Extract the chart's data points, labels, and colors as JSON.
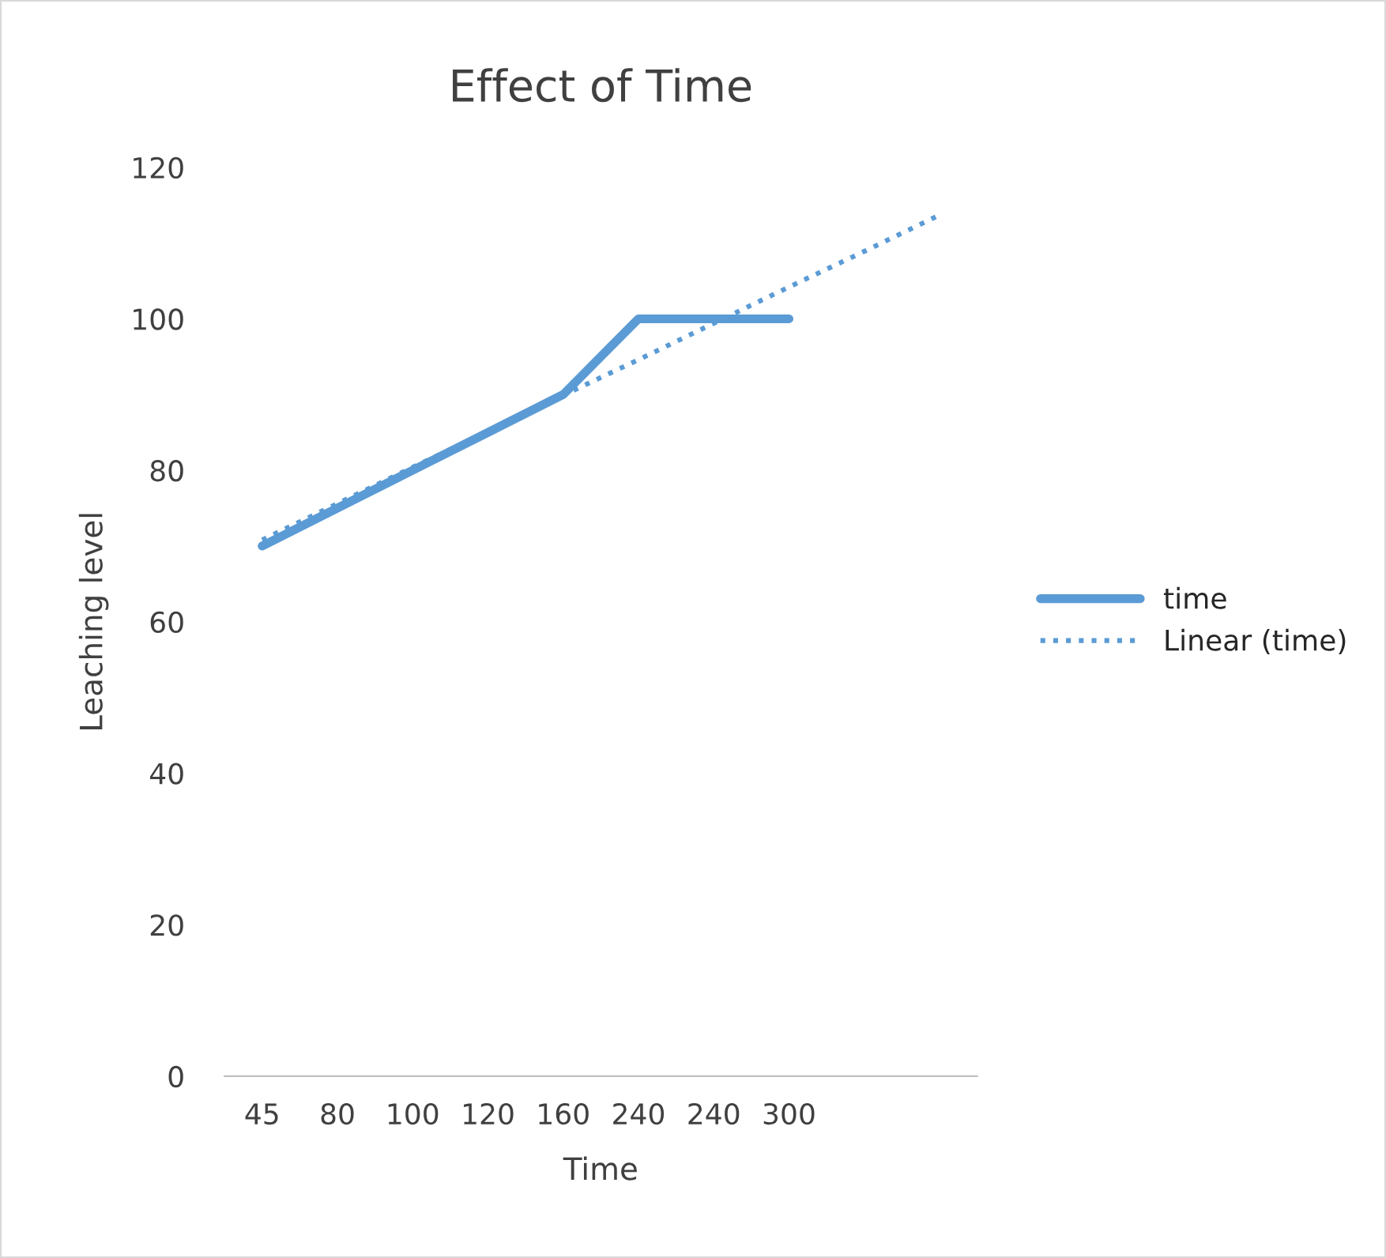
{
  "chart_data": {
    "type": "line",
    "title": "Effect of Time",
    "xlabel": "Time",
    "ylabel": "Leaching level",
    "categories": [
      "45",
      "80",
      "100",
      "120",
      "160",
      "240",
      "240",
      "300",
      null,
      null
    ],
    "series": [
      {
        "name": "time",
        "color": "#5b9bd5",
        "line_style": "solid",
        "values": [
          70,
          75,
          80,
          85,
          90,
          100,
          100,
          100,
          null,
          null
        ]
      },
      {
        "name": "Linear (time)",
        "color": "#5b9bd5",
        "line_style": "dotted",
        "values": [
          70.8,
          75.6,
          80.4,
          85.1,
          89.9,
          94.6,
          99.4,
          104.2,
          108.9,
          113.7
        ]
      }
    ],
    "ylim": [
      0,
      120
    ],
    "yticks": [
      0,
      20,
      40,
      60,
      80,
      100,
      120
    ],
    "grid": false,
    "legend": "right",
    "marker": "none"
  }
}
